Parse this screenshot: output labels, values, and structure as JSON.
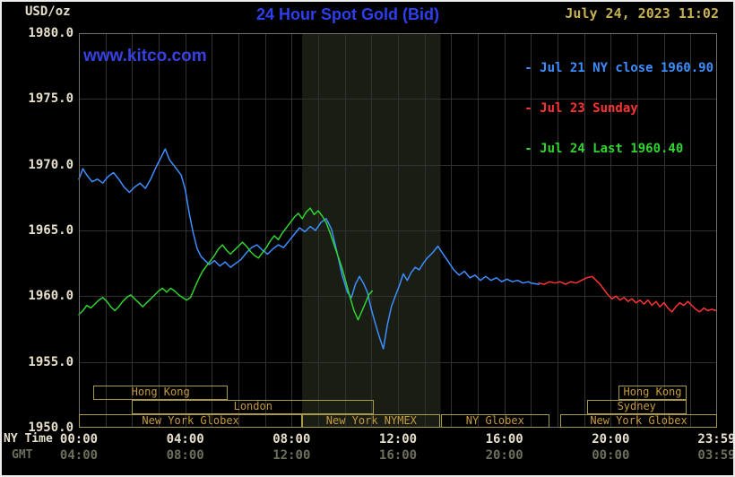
{
  "header": {
    "unit_label": "USD/oz",
    "title": "24 Hour Spot Gold (Bid)",
    "timestamp": "July 24, 2023 11:02",
    "watermark": "www.kitco.com"
  },
  "axis_row_labels": {
    "ny": "NY Time",
    "gmt": "GMT"
  },
  "legend": {
    "items": [
      {
        "label": "- Jul 21 NY close 1960.90"
      },
      {
        "label": "- Jul 23 Sunday"
      },
      {
        "label": "- Jul 24 Last 1960.40"
      }
    ]
  },
  "colors": {
    "background": "#000000",
    "title_text": "#2e3ff0",
    "watermark_text": "#3642e0",
    "timestamp_text": "#c8b152",
    "axis_text": "#e6e0cc",
    "gmt_text": "#6e6e5c",
    "grid_line": "#313131",
    "plot_frame": "#6f6f6f",
    "nymex_band": "#191d14",
    "session_border": "#a89a48",
    "session_text": "#c59a40"
  },
  "chart_data": {
    "type": "line",
    "title": "24 Hour Spot Gold (Bid)",
    "xlabel": "NY Time",
    "ylabel": "USD/oz",
    "xlim": [
      0,
      24
    ],
    "ylim": [
      1950,
      1980
    ],
    "grid": true,
    "legend_position": "top-right",
    "y_ticks": [
      1980,
      1975,
      1970,
      1965,
      1960,
      1955,
      1950
    ],
    "y_tick_labels": [
      "1980.0",
      "1975.0",
      "1970.0",
      "1965.0",
      "1960.0",
      "1955.0",
      "1950.0"
    ],
    "x_tick_hours": [
      0,
      4,
      8,
      12,
      16,
      20,
      23.983
    ],
    "x_ticks_ny": [
      "00:00",
      "04:00",
      "08:00",
      "12:00",
      "16:00",
      "20:00",
      "23:59"
    ],
    "x_ticks_gmt": [
      "04:00",
      "08:00",
      "12:00",
      "16:00",
      "20:00",
      "00:00",
      "03:59"
    ],
    "highlight_band_hours": [
      8.4,
      13.6
    ],
    "series": [
      {
        "id": "jul21",
        "name": "Jul 21 NY close 1960.90",
        "color": "#3d8eff",
        "points": [
          [
            0.0,
            1968.9
          ],
          [
            0.15,
            1969.7
          ],
          [
            0.3,
            1969.2
          ],
          [
            0.5,
            1968.7
          ],
          [
            0.7,
            1968.9
          ],
          [
            0.9,
            1968.6
          ],
          [
            1.1,
            1969.1
          ],
          [
            1.3,
            1969.4
          ],
          [
            1.5,
            1968.9
          ],
          [
            1.7,
            1968.3
          ],
          [
            1.9,
            1967.9
          ],
          [
            2.1,
            1968.3
          ],
          [
            2.3,
            1968.6
          ],
          [
            2.5,
            1968.2
          ],
          [
            2.7,
            1968.9
          ],
          [
            2.9,
            1969.8
          ],
          [
            3.1,
            1970.6
          ],
          [
            3.25,
            1971.2
          ],
          [
            3.4,
            1970.4
          ],
          [
            3.55,
            1970.0
          ],
          [
            3.7,
            1969.6
          ],
          [
            3.85,
            1969.2
          ],
          [
            4.0,
            1968.1
          ],
          [
            4.15,
            1966.3
          ],
          [
            4.3,
            1964.8
          ],
          [
            4.45,
            1963.6
          ],
          [
            4.6,
            1963.0
          ],
          [
            4.75,
            1962.7
          ],
          [
            4.9,
            1962.4
          ],
          [
            5.1,
            1962.7
          ],
          [
            5.3,
            1962.3
          ],
          [
            5.5,
            1962.6
          ],
          [
            5.7,
            1962.2
          ],
          [
            5.9,
            1962.5
          ],
          [
            6.1,
            1962.8
          ],
          [
            6.3,
            1963.3
          ],
          [
            6.5,
            1963.7
          ],
          [
            6.7,
            1963.9
          ],
          [
            6.9,
            1963.5
          ],
          [
            7.1,
            1963.2
          ],
          [
            7.3,
            1963.6
          ],
          [
            7.5,
            1963.9
          ],
          [
            7.7,
            1963.7
          ],
          [
            7.9,
            1964.2
          ],
          [
            8.1,
            1964.7
          ],
          [
            8.3,
            1965.2
          ],
          [
            8.5,
            1964.9
          ],
          [
            8.7,
            1965.3
          ],
          [
            8.9,
            1965.0
          ],
          [
            9.1,
            1965.6
          ],
          [
            9.3,
            1965.9
          ],
          [
            9.5,
            1965.1
          ],
          [
            9.7,
            1963.4
          ],
          [
            9.9,
            1961.6
          ],
          [
            10.1,
            1960.3
          ],
          [
            10.25,
            1959.9
          ],
          [
            10.4,
            1960.9
          ],
          [
            10.55,
            1961.5
          ],
          [
            10.7,
            1961.0
          ],
          [
            10.85,
            1960.3
          ],
          [
            11.0,
            1959.0
          ],
          [
            11.15,
            1957.9
          ],
          [
            11.3,
            1956.9
          ],
          [
            11.45,
            1956.0
          ],
          [
            11.6,
            1957.8
          ],
          [
            11.75,
            1959.2
          ],
          [
            11.9,
            1960.0
          ],
          [
            12.05,
            1960.8
          ],
          [
            12.2,
            1961.7
          ],
          [
            12.35,
            1961.2
          ],
          [
            12.5,
            1961.8
          ],
          [
            12.65,
            1962.2
          ],
          [
            12.8,
            1962.0
          ],
          [
            12.95,
            1962.5
          ],
          [
            13.1,
            1962.9
          ],
          [
            13.3,
            1963.3
          ],
          [
            13.5,
            1963.8
          ],
          [
            13.7,
            1963.2
          ],
          [
            13.9,
            1962.6
          ],
          [
            14.1,
            1962.0
          ],
          [
            14.3,
            1961.6
          ],
          [
            14.5,
            1961.9
          ],
          [
            14.7,
            1961.4
          ],
          [
            14.9,
            1961.6
          ],
          [
            15.1,
            1961.2
          ],
          [
            15.3,
            1961.5
          ],
          [
            15.5,
            1961.2
          ],
          [
            15.7,
            1961.4
          ],
          [
            15.9,
            1961.1
          ],
          [
            16.1,
            1961.3
          ],
          [
            16.3,
            1961.1
          ],
          [
            16.5,
            1961.2
          ],
          [
            16.7,
            1961.0
          ],
          [
            16.9,
            1961.1
          ],
          [
            17.0,
            1961.0
          ],
          [
            17.3,
            1960.9
          ]
        ]
      },
      {
        "id": "jul23",
        "name": "Jul 23 Sunday",
        "color": "#ff3232",
        "points": [
          [
            17.3,
            1961.0
          ],
          [
            17.5,
            1960.9
          ],
          [
            17.7,
            1961.1
          ],
          [
            17.9,
            1961.0
          ],
          [
            18.1,
            1961.1
          ],
          [
            18.3,
            1960.9
          ],
          [
            18.5,
            1961.1
          ],
          [
            18.7,
            1961.0
          ],
          [
            18.9,
            1961.2
          ],
          [
            19.1,
            1961.4
          ],
          [
            19.3,
            1961.5
          ],
          [
            19.45,
            1961.2
          ],
          [
            19.6,
            1960.9
          ],
          [
            19.75,
            1960.5
          ],
          [
            19.9,
            1960.1
          ],
          [
            20.05,
            1959.8
          ],
          [
            20.2,
            1960.0
          ],
          [
            20.35,
            1959.7
          ],
          [
            20.5,
            1959.9
          ],
          [
            20.65,
            1959.6
          ],
          [
            20.8,
            1959.8
          ],
          [
            20.95,
            1959.5
          ],
          [
            21.1,
            1959.7
          ],
          [
            21.25,
            1959.4
          ],
          [
            21.4,
            1959.7
          ],
          [
            21.55,
            1959.3
          ],
          [
            21.7,
            1959.6
          ],
          [
            21.85,
            1959.2
          ],
          [
            22.0,
            1959.5
          ],
          [
            22.15,
            1959.1
          ],
          [
            22.3,
            1958.8
          ],
          [
            22.45,
            1959.2
          ],
          [
            22.6,
            1959.5
          ],
          [
            22.75,
            1959.3
          ],
          [
            22.9,
            1959.6
          ],
          [
            23.05,
            1959.3
          ],
          [
            23.2,
            1959.0
          ],
          [
            23.35,
            1958.8
          ],
          [
            23.5,
            1959.1
          ],
          [
            23.65,
            1958.9
          ],
          [
            23.8,
            1959.0
          ],
          [
            23.98,
            1958.9
          ]
        ]
      },
      {
        "id": "jul24",
        "name": "Jul 24 Last 1960.40",
        "color": "#2fd52f",
        "points": [
          [
            0.0,
            1958.6
          ],
          [
            0.15,
            1958.9
          ],
          [
            0.3,
            1959.3
          ],
          [
            0.45,
            1959.1
          ],
          [
            0.6,
            1959.4
          ],
          [
            0.75,
            1959.7
          ],
          [
            0.9,
            1959.9
          ],
          [
            1.05,
            1959.6
          ],
          [
            1.2,
            1959.2
          ],
          [
            1.35,
            1958.9
          ],
          [
            1.5,
            1959.2
          ],
          [
            1.65,
            1959.6
          ],
          [
            1.8,
            1959.9
          ],
          [
            1.95,
            1960.1
          ],
          [
            2.1,
            1959.8
          ],
          [
            2.25,
            1959.5
          ],
          [
            2.4,
            1959.2
          ],
          [
            2.55,
            1959.5
          ],
          [
            2.7,
            1959.8
          ],
          [
            2.85,
            1960.1
          ],
          [
            3.0,
            1960.4
          ],
          [
            3.15,
            1960.6
          ],
          [
            3.3,
            1960.3
          ],
          [
            3.45,
            1960.6
          ],
          [
            3.6,
            1960.4
          ],
          [
            3.75,
            1960.1
          ],
          [
            3.9,
            1959.9
          ],
          [
            4.05,
            1959.7
          ],
          [
            4.2,
            1959.9
          ],
          [
            4.35,
            1960.6
          ],
          [
            4.5,
            1961.3
          ],
          [
            4.65,
            1961.9
          ],
          [
            4.8,
            1962.3
          ],
          [
            4.95,
            1962.7
          ],
          [
            5.1,
            1963.1
          ],
          [
            5.25,
            1963.6
          ],
          [
            5.4,
            1963.9
          ],
          [
            5.55,
            1963.5
          ],
          [
            5.7,
            1963.2
          ],
          [
            5.85,
            1963.5
          ],
          [
            6.0,
            1963.8
          ],
          [
            6.15,
            1964.1
          ],
          [
            6.3,
            1963.8
          ],
          [
            6.45,
            1963.4
          ],
          [
            6.6,
            1963.1
          ],
          [
            6.75,
            1962.9
          ],
          [
            6.9,
            1963.3
          ],
          [
            7.05,
            1963.7
          ],
          [
            7.2,
            1964.2
          ],
          [
            7.35,
            1964.6
          ],
          [
            7.5,
            1964.3
          ],
          [
            7.65,
            1964.8
          ],
          [
            7.8,
            1965.2
          ],
          [
            7.95,
            1965.6
          ],
          [
            8.1,
            1966.0
          ],
          [
            8.25,
            1966.3
          ],
          [
            8.4,
            1965.9
          ],
          [
            8.55,
            1966.4
          ],
          [
            8.7,
            1966.7
          ],
          [
            8.85,
            1966.2
          ],
          [
            9.0,
            1966.5
          ],
          [
            9.15,
            1966.1
          ],
          [
            9.3,
            1965.6
          ],
          [
            9.45,
            1964.8
          ],
          [
            9.6,
            1963.9
          ],
          [
            9.75,
            1963.0
          ],
          [
            9.9,
            1962.1
          ],
          [
            10.05,
            1961.0
          ],
          [
            10.2,
            1959.9
          ],
          [
            10.35,
            1958.9
          ],
          [
            10.5,
            1958.2
          ],
          [
            10.65,
            1958.9
          ],
          [
            10.8,
            1959.6
          ],
          [
            10.9,
            1960.1
          ],
          [
            11.03,
            1960.4
          ]
        ]
      }
    ],
    "sessions": [
      {
        "label": "Hong Kong",
        "row": 0,
        "start_hour": 0.55,
        "end_hour": 5.6
      },
      {
        "label": "Hong Kong",
        "row": 0,
        "start_hour": 20.3,
        "end_hour": 22.85
      },
      {
        "label": "London",
        "row": 1,
        "start_hour": 2.0,
        "end_hour": 11.1
      },
      {
        "label": "Sydney",
        "row": 1,
        "start_hour": 19.1,
        "end_hour": 22.85
      },
      {
        "label": "New York Globex",
        "row": 2,
        "start_hour": 0.0,
        "end_hour": 8.4
      },
      {
        "label": "New York NYMEX",
        "row": 2,
        "start_hour": 8.4,
        "end_hour": 13.6
      },
      {
        "label": "NY Globex",
        "row": 2,
        "start_hour": 13.6,
        "end_hour": 17.7
      },
      {
        "label": "New York Globex",
        "row": 2,
        "start_hour": 18.1,
        "end_hour": 24.0
      }
    ]
  }
}
